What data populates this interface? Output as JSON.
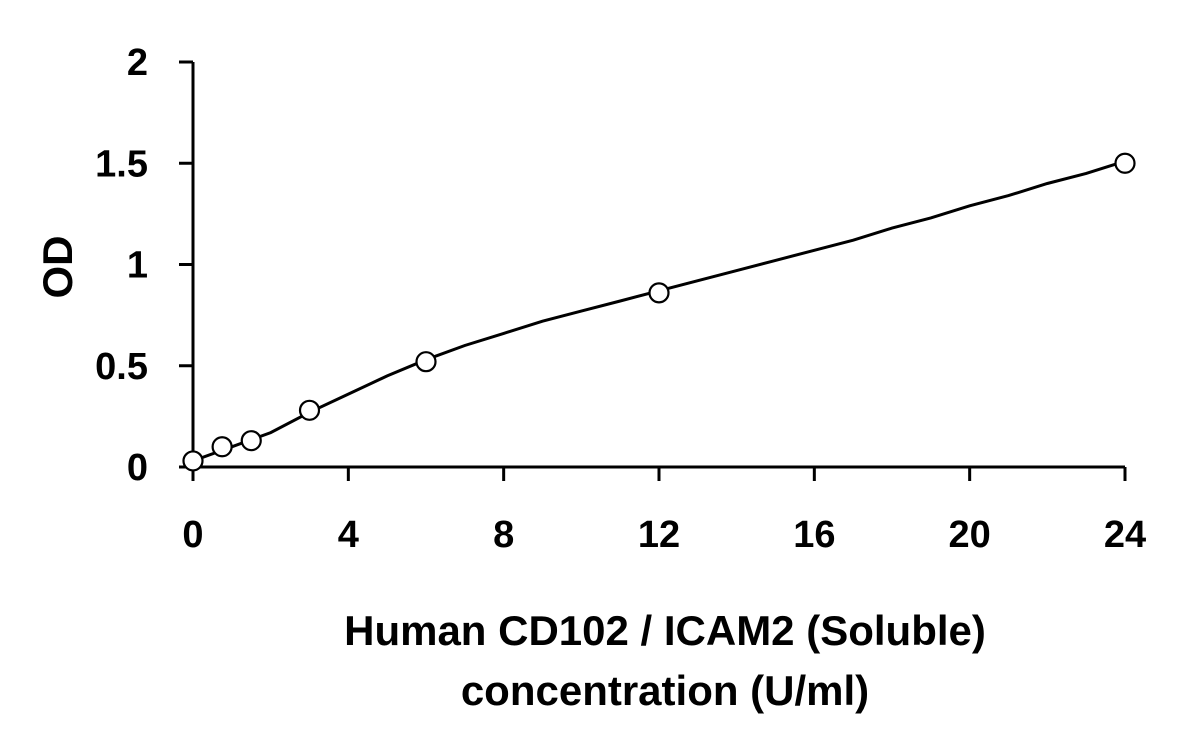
{
  "chart_data": {
    "type": "scatter",
    "xlabel_lines": [
      "Human CD102 / ICAM2 (Soluble)",
      "concentration (U/ml)"
    ],
    "ylabel": "OD",
    "xlim": [
      0,
      24
    ],
    "ylim": [
      0,
      2
    ],
    "x_ticks": [
      0,
      4,
      8,
      12,
      16,
      20,
      24
    ],
    "y_ticks": [
      {
        "value": 0,
        "label": "0"
      },
      {
        "value": 0.5,
        "label": "0.5"
      },
      {
        "value": 1,
        "label": "1"
      },
      {
        "value": 1.5,
        "label": "1.5"
      },
      {
        "value": 2,
        "label": "2"
      }
    ],
    "grid": false,
    "legend": "none",
    "series": [
      {
        "points": [
          {
            "x": 0,
            "y": 0.03
          },
          {
            "x": 0.75,
            "y": 0.1
          },
          {
            "x": 1.5,
            "y": 0.13
          },
          {
            "x": 3,
            "y": 0.28
          },
          {
            "x": 6,
            "y": 0.52
          },
          {
            "x": 12,
            "y": 0.86
          },
          {
            "x": 24,
            "y": 1.5
          }
        ],
        "fit_curve": {
          "x": [
            0,
            1,
            2,
            3,
            4,
            5,
            6,
            7,
            8,
            9,
            10,
            11,
            12,
            13,
            14,
            15,
            16,
            17,
            18,
            19,
            20,
            21,
            22,
            23,
            24
          ],
          "y": [
            0.03,
            0.1,
            0.17,
            0.27,
            0.36,
            0.45,
            0.53,
            0.6,
            0.66,
            0.72,
            0.77,
            0.82,
            0.87,
            0.92,
            0.97,
            1.02,
            1.07,
            1.12,
            1.18,
            1.23,
            1.29,
            1.34,
            1.4,
            1.45,
            1.51
          ]
        }
      }
    ]
  }
}
